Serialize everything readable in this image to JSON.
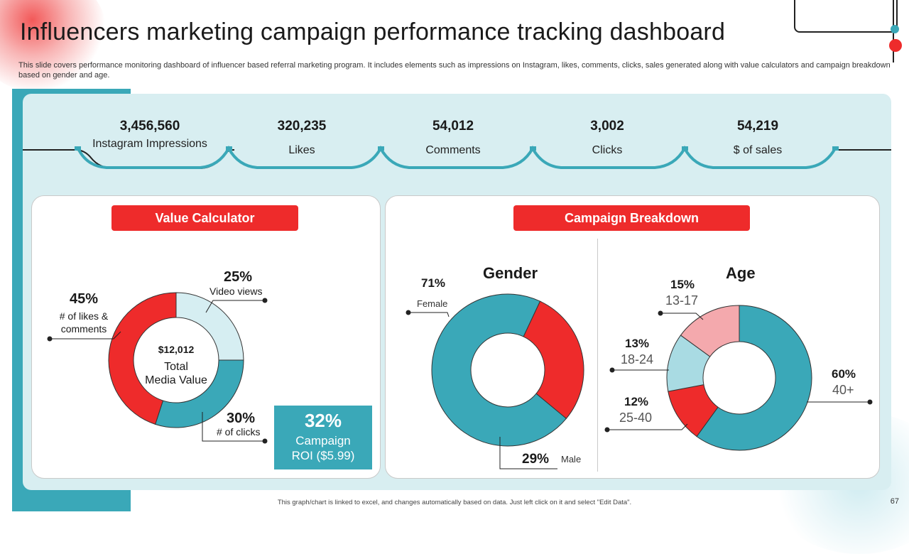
{
  "title": "Influencers marketing campaign performance tracking dashboard",
  "subtitle": "This slide covers performance monitoring dashboard of influencer based referral marketing program. It includes elements such as impressions on Instagram, likes, comments, clicks, sales generated along with value calculators and campaign breakdown based on gender and age.",
  "kpis": [
    {
      "value": "3,456,560",
      "label": "Instagram Impressions"
    },
    {
      "value": "320,235",
      "label": "Likes"
    },
    {
      "value": "54,012",
      "label": "Comments"
    },
    {
      "value": "3,002",
      "label": "Clicks"
    },
    {
      "value": "54,219",
      "label": "$ of sales"
    }
  ],
  "value_calculator": {
    "header": "Value Calculator",
    "center_value": "$12,012",
    "center_label_1": "Total",
    "center_label_2": "Media Value",
    "roi_value": "32%",
    "roi_label_1": "Campaign",
    "roi_label_2": "ROI ($5.99)",
    "labels": [
      {
        "pct": "45%",
        "line1": "# of likes &",
        "line2": "comments"
      },
      {
        "pct": "25%",
        "line1": "Video views"
      },
      {
        "pct": "30%",
        "line1": "# of clicks"
      }
    ]
  },
  "campaign_breakdown": {
    "header": "Campaign Breakdown",
    "gender_title": "Gender",
    "age_title": "Age",
    "gender_labels": [
      {
        "pct": "71%",
        "name": "Female"
      },
      {
        "pct": "29%",
        "name": "Male"
      }
    ],
    "age_labels": [
      {
        "pct": "15%",
        "name": "13-17"
      },
      {
        "pct": "13%",
        "name": "18-24"
      },
      {
        "pct": "12%",
        "name": "25-40"
      },
      {
        "pct": "60%",
        "name": "40+"
      }
    ]
  },
  "footer": "This graph/chart is linked to excel, and changes automatically based on data. Just left click on it and select \"Edit Data\".",
  "page_number": "67",
  "colors": {
    "teal": "#3aa8b8",
    "red": "#ee2b2b",
    "light_teal": "#d6eef2",
    "light_blue": "#a9dbe3",
    "pink": "#f4a9ad"
  },
  "chart_data": [
    {
      "type": "pie",
      "title": "Value Calculator",
      "categories": [
        "Video views",
        "# of clicks",
        "# of likes & comments"
      ],
      "values": [
        25,
        30,
        45
      ],
      "colors": [
        "#d6eef2",
        "#3aa8b8",
        "#ee2b2b"
      ]
    },
    {
      "type": "pie",
      "title": "Gender",
      "categories": [
        "Female",
        "Male"
      ],
      "values": [
        71,
        29
      ],
      "colors": [
        "#3aa8b8",
        "#ee2b2b"
      ]
    },
    {
      "type": "pie",
      "title": "Age",
      "categories": [
        "40+",
        "25-40",
        "18-24",
        "13-17"
      ],
      "values": [
        60,
        12,
        13,
        15
      ],
      "colors": [
        "#3aa8b8",
        "#ee2b2b",
        "#a9dbe3",
        "#f4a9ad"
      ]
    }
  ]
}
